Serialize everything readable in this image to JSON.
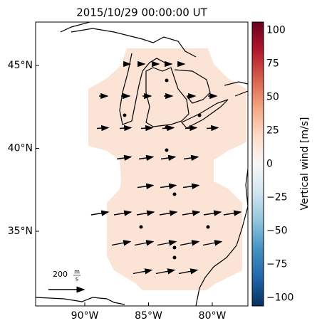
{
  "title": "2015/10/29 00:00:00 UT",
  "map": {
    "lat_ticks": [
      {
        "value": 45,
        "label": "45°N"
      },
      {
        "value": 40,
        "label": "40°N"
      },
      {
        "value": 35,
        "label": "35°N"
      }
    ],
    "lon_ticks": [
      {
        "value": -90,
        "label": "90°W"
      },
      {
        "value": -85,
        "label": "85°W"
      },
      {
        "value": -80,
        "label": "80°W"
      }
    ],
    "scale_arrow": {
      "value": "200",
      "unit_num": "m",
      "unit_den": "s"
    }
  },
  "colorbar": {
    "label": "Vertical wind [m/s]",
    "lim": [
      -106,
      106
    ],
    "ticks": [
      100,
      75,
      50,
      25,
      0,
      {
        "value": -25,
        "label": "−25"
      },
      {
        "value": -50,
        "label": "−50"
      },
      {
        "value": -75,
        "label": "−75"
      },
      {
        "value": -100,
        "label": "−100"
      }
    ]
  }
}
